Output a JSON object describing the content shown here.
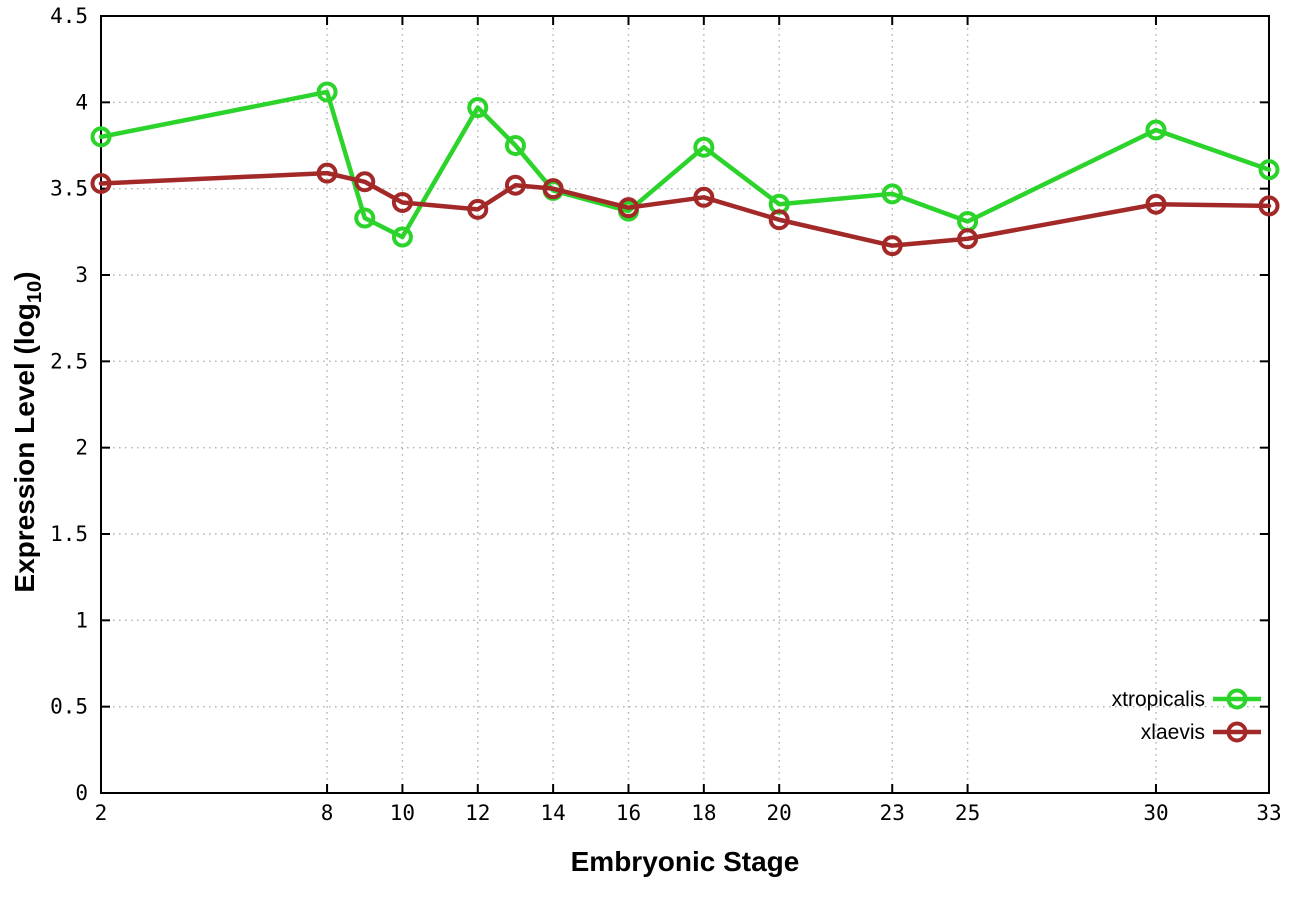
{
  "chart_data": {
    "type": "line",
    "title": "",
    "xlabel": "Embryonic Stage",
    "ylabel": "Expression Level (log10)",
    "ylabel_parts": {
      "pre": "Expression Level (log",
      "sub": "10",
      "post": ")"
    },
    "xlim": [
      2,
      33
    ],
    "ylim": [
      0,
      4.5
    ],
    "xticks": [
      2,
      8,
      10,
      12,
      14,
      16,
      18,
      20,
      23,
      25,
      30,
      33
    ],
    "yticks": [
      0,
      0.5,
      1,
      1.5,
      2,
      2.5,
      3,
      3.5,
      4,
      4.5
    ],
    "grid": true,
    "grid_color": "#b4b4b4",
    "axis_color": "#000000",
    "background_color": "#ffffff",
    "marker": "open-circle",
    "legend_position": "bottom-right",
    "x": [
      2,
      8,
      9,
      10,
      12,
      13,
      14,
      16,
      18,
      20,
      23,
      25,
      30,
      33
    ],
    "series": [
      {
        "name": "xtropicalis",
        "color": "#2bd32b",
        "values": [
          3.8,
          4.06,
          3.33,
          3.22,
          3.97,
          3.75,
          3.49,
          3.37,
          3.74,
          3.41,
          3.47,
          3.31,
          3.84,
          3.61
        ]
      },
      {
        "name": "xlaevis",
        "color": "#a32929",
        "values": [
          3.53,
          3.59,
          3.54,
          3.42,
          3.38,
          3.52,
          3.5,
          3.39,
          3.45,
          3.32,
          3.17,
          3.21,
          3.41,
          3.4
        ]
      }
    ]
  }
}
